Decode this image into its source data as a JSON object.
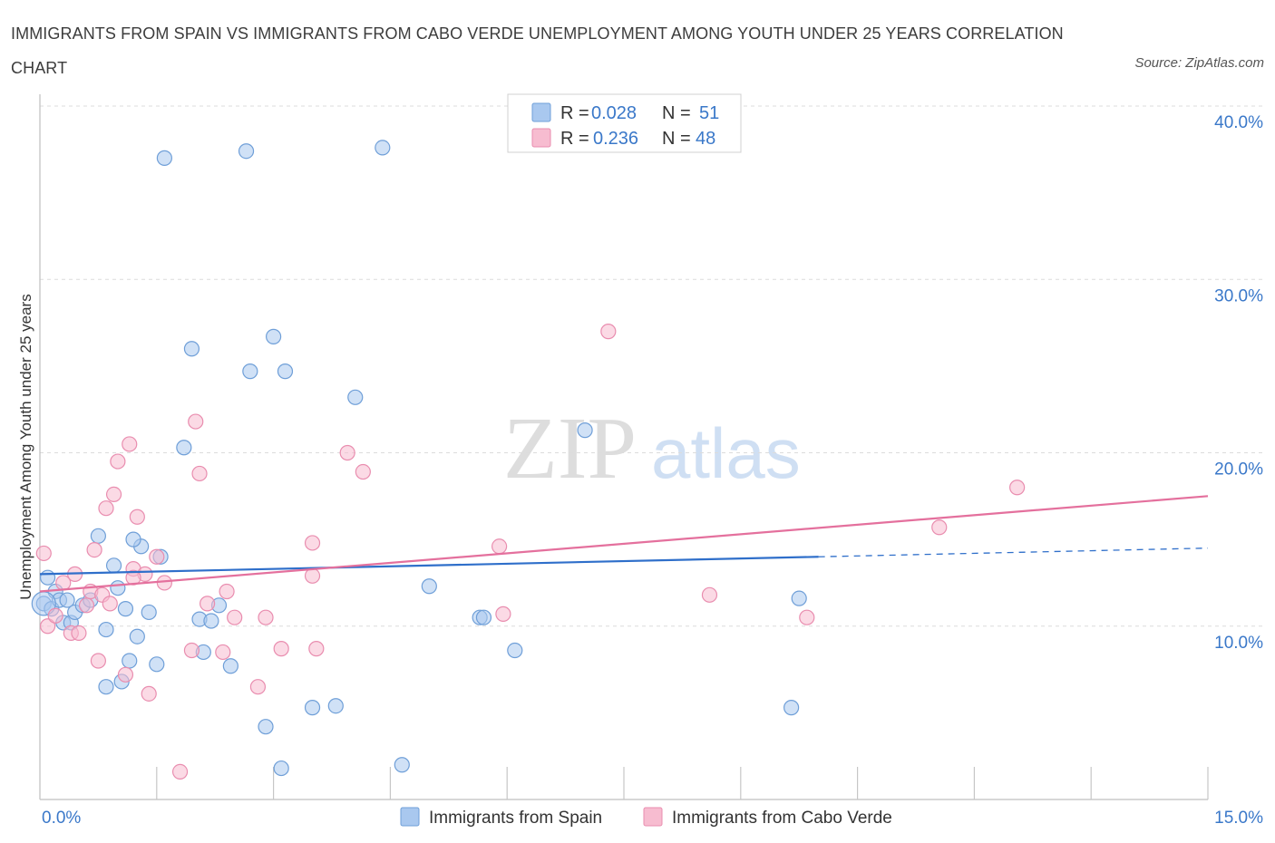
{
  "title": "IMMIGRANTS FROM SPAIN VS IMMIGRANTS FROM CABO VERDE UNEMPLOYMENT AMONG YOUTH UNDER 25 YEARS CORRELATION CHART",
  "source": "Source: ZipAtlas.com",
  "watermark": {
    "zip": "ZIP",
    "atlas": "atlas"
  },
  "legend": {
    "r_label": "R =",
    "n_label": "N =",
    "rows": [
      {
        "r": "0.028",
        "n": "51"
      },
      {
        "r": "0.236",
        "n": "48"
      }
    ]
  },
  "colors": {
    "spain_fill": "#a9c8ef",
    "spain_stroke": "#6f9fd8",
    "spain_line": "#2f6fca",
    "cabo_fill": "#f7bcd0",
    "cabo_stroke": "#e98daf",
    "cabo_line": "#e4709d",
    "axis_text": "#3a78c9"
  },
  "chart_data": {
    "type": "scatter",
    "title": "IMMIGRANTS FROM SPAIN VS IMMIGRANTS FROM CABO VERDE UNEMPLOYMENT AMONG YOUTH UNDER 25 YEARS CORRELATION CHART",
    "xlabel": "",
    "ylabel": "Unemployment Among Youth under 25 years",
    "xlim": [
      0,
      15
    ],
    "ylim": [
      0,
      40
    ],
    "x_tick_labels": [
      {
        "value": 0,
        "label": "0.0%"
      },
      {
        "value": 15,
        "label": "15.0%"
      }
    ],
    "y_tick_labels": [
      {
        "value": 10,
        "label": "10.0%"
      },
      {
        "value": 20,
        "label": "20.0%"
      },
      {
        "value": 30,
        "label": "30.0%"
      },
      {
        "value": 40,
        "label": "40.0%"
      }
    ],
    "grid": true,
    "legend_position": "top-center",
    "series": [
      {
        "name": "Immigrants from Spain",
        "R": 0.028,
        "N": 51,
        "trend": {
          "x0": 0,
          "y0": 13.0,
          "x1": 10.0,
          "y1": 14.0,
          "dash_to_x": 15,
          "dash_to_y": 14.5
        },
        "points": [
          [
            0.05,
            11.3
          ],
          [
            0.1,
            12.8
          ],
          [
            0.15,
            11.0
          ],
          [
            0.2,
            12.0
          ],
          [
            0.25,
            11.5
          ],
          [
            0.3,
            10.2
          ],
          [
            0.35,
            11.5
          ],
          [
            0.4,
            10.2
          ],
          [
            0.45,
            10.8
          ],
          [
            0.55,
            11.2
          ],
          [
            0.65,
            11.5
          ],
          [
            0.75,
            15.2
          ],
          [
            0.85,
            9.8
          ],
          [
            0.95,
            13.5
          ],
          [
            1.0,
            12.2
          ],
          [
            1.1,
            11.0
          ],
          [
            1.15,
            8.0
          ],
          [
            1.25,
            9.4
          ],
          [
            1.3,
            14.6
          ],
          [
            1.4,
            10.8
          ],
          [
            1.5,
            7.8
          ],
          [
            1.55,
            14.0
          ],
          [
            1.85,
            20.3
          ],
          [
            1.95,
            26.0
          ],
          [
            2.05,
            10.4
          ],
          [
            2.1,
            8.5
          ],
          [
            2.3,
            11.2
          ],
          [
            2.45,
            7.7
          ],
          [
            2.7,
            24.7
          ],
          [
            2.9,
            4.2
          ],
          [
            3.0,
            26.7
          ],
          [
            3.15,
            24.7
          ],
          [
            3.5,
            5.3
          ],
          [
            4.05,
            23.2
          ],
          [
            5.0,
            12.3
          ],
          [
            5.65,
            10.5
          ],
          [
            5.7,
            10.5
          ],
          [
            6.1,
            8.6
          ],
          [
            7.0,
            21.3
          ],
          [
            9.75,
            11.6
          ],
          [
            9.65,
            5.3
          ],
          [
            0.85,
            6.5
          ],
          [
            1.05,
            6.8
          ],
          [
            2.2,
            10.3
          ],
          [
            3.1,
            1.8
          ],
          [
            1.2,
            15.0
          ],
          [
            4.65,
            2.0
          ],
          [
            1.6,
            37.0
          ],
          [
            2.65,
            37.4
          ],
          [
            4.4,
            37.6
          ],
          [
            3.8,
            5.4
          ]
        ]
      },
      {
        "name": "Immigrants from Cabo Verde",
        "R": 0.236,
        "N": 48,
        "trend": {
          "x0": 0,
          "y0": 12.0,
          "x1": 15,
          "y1": 17.5
        },
        "points": [
          [
            0.05,
            14.2
          ],
          [
            0.1,
            10.0
          ],
          [
            0.2,
            10.6
          ],
          [
            0.3,
            12.5
          ],
          [
            0.4,
            9.6
          ],
          [
            0.45,
            13.0
          ],
          [
            0.5,
            9.6
          ],
          [
            0.6,
            11.2
          ],
          [
            0.65,
            12.0
          ],
          [
            0.7,
            14.4
          ],
          [
            0.75,
            8.0
          ],
          [
            0.8,
            11.8
          ],
          [
            0.85,
            16.8
          ],
          [
            0.9,
            11.3
          ],
          [
            0.95,
            17.6
          ],
          [
            1.0,
            19.5
          ],
          [
            1.1,
            7.2
          ],
          [
            1.15,
            20.5
          ],
          [
            1.2,
            13.3
          ],
          [
            1.25,
            16.3
          ],
          [
            1.35,
            13.0
          ],
          [
            1.4,
            6.1
          ],
          [
            1.5,
            14.0
          ],
          [
            1.6,
            12.5
          ],
          [
            1.8,
            1.6
          ],
          [
            1.95,
            8.6
          ],
          [
            2.0,
            21.8
          ],
          [
            2.05,
            18.8
          ],
          [
            2.15,
            11.3
          ],
          [
            2.35,
            8.5
          ],
          [
            2.4,
            12.0
          ],
          [
            2.5,
            10.5
          ],
          [
            2.8,
            6.5
          ],
          [
            2.9,
            10.5
          ],
          [
            3.1,
            8.7
          ],
          [
            3.5,
            12.9
          ],
          [
            3.55,
            8.7
          ],
          [
            3.5,
            14.8
          ],
          [
            3.95,
            20.0
          ],
          [
            4.15,
            18.9
          ],
          [
            5.9,
            14.6
          ],
          [
            5.95,
            10.7
          ],
          [
            7.3,
            27.0
          ],
          [
            8.6,
            11.8
          ],
          [
            9.85,
            10.5
          ],
          [
            11.55,
            15.7
          ],
          [
            12.55,
            18.0
          ],
          [
            1.2,
            12.8
          ]
        ]
      }
    ]
  },
  "bottom_legend": {
    "spain": "Immigrants from Spain",
    "cabo": "Immigrants from Cabo Verde"
  }
}
